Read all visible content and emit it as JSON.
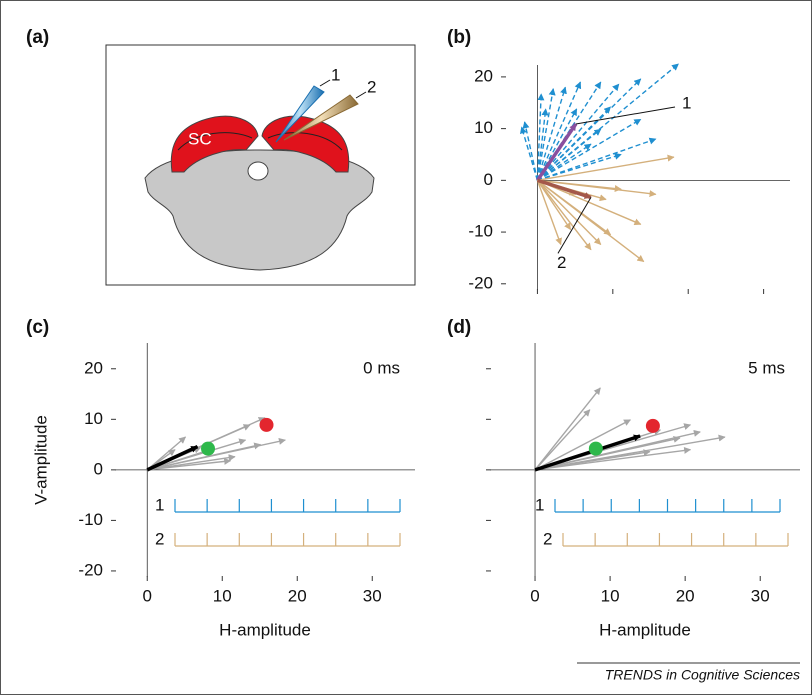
{
  "panel_a": {
    "label": "(a)",
    "region": "SC",
    "electrodes": [
      "1",
      "2"
    ]
  },
  "chart_data": [
    {
      "type": "vector",
      "label": "(b)",
      "xlim": [
        -4.3,
        33.5
      ],
      "ylim": [
        -21.2,
        22.3
      ],
      "xticks": [
        0,
        10,
        20,
        30
      ],
      "xtick_labels": false,
      "yticks": [
        -20,
        -10,
        0,
        10,
        20
      ],
      "ytick_labels": true,
      "series": [
        {
          "name": "1",
          "color": "#1f8fd0",
          "dashed": true,
          "x": [
            18.7,
            13.7,
            10.8,
            8.4,
            5.7,
            3.7,
            2.1,
            0.5,
            -1.7,
            -2.1,
            1.1,
            5.2,
            9.7,
            13.7,
            15.7,
            8.4,
            7.1,
            11.1
          ],
          "y": [
            22.5,
            19.6,
            18.6,
            19,
            19,
            18,
            17.7,
            16.7,
            11.3,
            10.3,
            13.8,
            13.8,
            14.2,
            11.8,
            8,
            9.9,
            7,
            5
          ],
          "mean": {
            "x": 5.1,
            "y": 10.9,
            "color": "#8a4f9e"
          }
        },
        {
          "name": "2",
          "color": "#d4b07c",
          "dashed": false,
          "x": [
            18.1,
            15.7,
            11.1,
            13.7,
            14.1,
            9.7,
            8.4,
            7.1,
            4.4,
            3.1,
            5.1,
            9.1
          ],
          "y": [
            4.5,
            -2.7,
            -1.7,
            -8.5,
            -15.7,
            -10.5,
            -12.4,
            -13.4,
            -9.5,
            -12.4,
            -2.7,
            -3.7
          ],
          "mean": {
            "x": 7.1,
            "y": -3.3,
            "color": "#a4584a"
          }
        }
      ]
    },
    {
      "type": "vector",
      "label": "(c)",
      "annotation": "0 ms",
      "xlabel": "H-amplitude",
      "ylabel": "V-amplitude",
      "xlim": [
        -4.3,
        35.7
      ],
      "ylim": [
        -21.2,
        25.1
      ],
      "xticks": [
        0,
        10,
        20,
        30
      ],
      "xtick_labels": true,
      "yticks": [
        -20,
        -10,
        0,
        10,
        20
      ],
      "ytick_labels": true,
      "series": [
        {
          "color": "#a6a6a6",
          "dashed": false,
          "x": [
            15.7,
            13.7,
            18.4,
            15.1,
            13.1,
            11.7,
            11.1,
            7.1,
            5.1,
            3.7,
            8.4
          ],
          "y": [
            10.3,
            8.9,
            5.9,
            5,
            5.9,
            2.6,
            1.8,
            4.4,
            6.5,
            4,
            4
          ],
          "mean": {
            "x": 6.7,
            "y": 4.6,
            "color": "#000000"
          }
        }
      ],
      "points": [
        {
          "x": 8.1,
          "y": 4.2,
          "color": "#2eb84b"
        },
        {
          "x": 15.9,
          "y": 8.9,
          "color": "#e3262e"
        }
      ],
      "rasters": [
        {
          "name": "1",
          "color": "#1f8fd0"
        },
        {
          "name": "2",
          "color": "#d4b07c"
        }
      ]
    },
    {
      "type": "vector",
      "label": "(d)",
      "annotation": "5 ms",
      "xlabel": "H-amplitude",
      "xlim": [
        -6,
        35.3
      ],
      "ylim": [
        -21.2,
        25.1
      ],
      "xticks": [
        0,
        10,
        20,
        30
      ],
      "xtick_labels": true,
      "yticks": [
        -20,
        -10,
        0,
        10,
        20
      ],
      "ytick_labels": false,
      "series": [
        {
          "color": "#a6a6a6",
          "dashed": false,
          "x": [
            8.7,
            7.3,
            12.7,
            20.7,
            19.3,
            25.3,
            22,
            20.7,
            15.3,
            16.7
          ],
          "y": [
            16.2,
            11.9,
            9.9,
            8.9,
            6.3,
            6.5,
            7.5,
            4,
            3.6,
            7.9
          ],
          "mean": {
            "x": 14,
            "y": 6.7,
            "color": "#000000"
          }
        }
      ],
      "points": [
        {
          "x": 8.1,
          "y": 4.2,
          "color": "#2eb84b"
        },
        {
          "x": 15.7,
          "y": 8.7,
          "color": "#e3262e"
        }
      ],
      "rasters": [
        {
          "name": "1",
          "color": "#1f8fd0"
        },
        {
          "name": "2",
          "color": "#d4b07c"
        }
      ]
    }
  ],
  "credit": "TRENDS in Cognitive Sciences"
}
